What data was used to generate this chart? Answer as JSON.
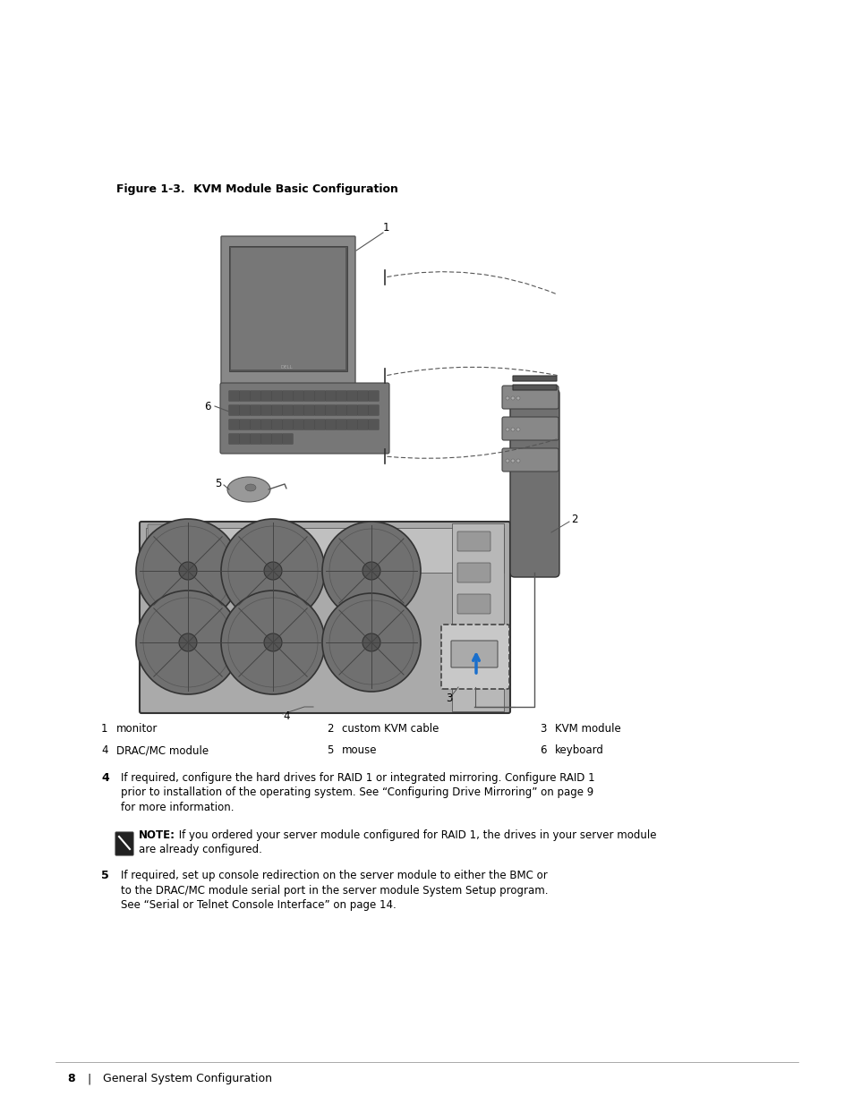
{
  "background_color": "#ffffff",
  "figure_title_part1": "Figure 1-3.",
  "figure_title_part2": "   KVM Module Basic Configuration",
  "labels_row1": [
    {
      "num": "1",
      "text": "monitor"
    },
    {
      "num": "2",
      "text": "custom KVM cable"
    },
    {
      "num": "3",
      "text": "KVM module"
    }
  ],
  "labels_row2": [
    {
      "num": "4",
      "text": "DRAC/MC module"
    },
    {
      "num": "5",
      "text": "mouse"
    },
    {
      "num": "6",
      "text": "keyboard"
    }
  ],
  "para4_num": "4",
  "para4_lines": [
    "If required, configure the hard drives for RAID 1 or integrated mirroring. Configure RAID 1",
    "prior to installation of the operating system. See “Configuring Drive Mirroring” on page 9",
    "for more information."
  ],
  "note_keyword": "NOTE:",
  "note_lines": [
    " If you ordered your server module configured for RAID 1, the drives in your server module",
    "are already configured."
  ],
  "para5_num": "5",
  "para5_lines": [
    "If required, set up console redirection on the server module to either the BMC or",
    "to the DRAC/MC module serial port in the server module System Setup program.",
    "See “Serial or Telnet Console Interface” on page 14."
  ],
  "footer_num": "8",
  "footer_section": "General System Configuration"
}
